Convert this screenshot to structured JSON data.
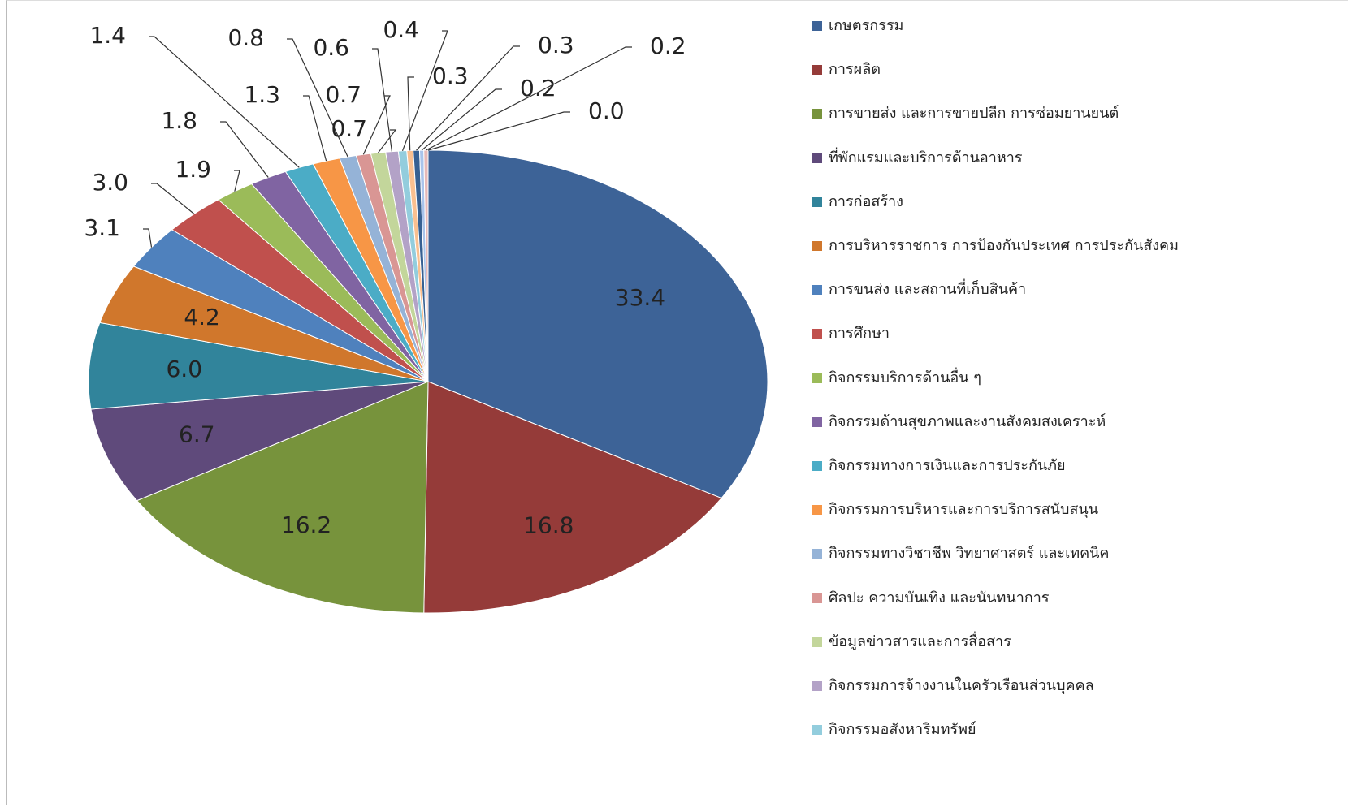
{
  "chart_data": {
    "type": "pie",
    "categories": [
      "เกษตรกรรม",
      "การผลิต",
      "การขายส่ง และการขายปลีก การซ่อมยานยนต์",
      "ที่พักแรมและบริการด้านอาหาร",
      "การก่อสร้าง",
      "การบริหารราชการ การป้องกันประเทศ การประกันสังคม",
      "การขนส่ง และสถานที่เก็บสินค้า",
      "การศึกษา",
      "กิจกรรมบริการด้านอื่น ๆ",
      "กิจกรรมด้านสุขภาพและงานสังคมสงเคราะห์",
      "กิจกรรมทางการเงินและการประกันภัย",
      "กิจกรรมการบริหารและการบริการสนับสนุน",
      "กิจกรรมทางวิชาชีพ วิทยาศาสตร์ และเทคนิค",
      "ศิลปะ ความบันเทิง และนันทนาการ",
      "ข้อมูลข่าวสารและการสื่อสาร",
      "กิจกรรมการจ้างงานในครัวเรือนส่วนบุคคล",
      "กิจกรรมอสังหาริมทรัพย์",
      null,
      null,
      null,
      null,
      null
    ],
    "values": [
      33.4,
      16.8,
      16.2,
      6.7,
      6.0,
      4.2,
      3.1,
      3.0,
      1.9,
      1.8,
      1.4,
      1.3,
      0.8,
      0.7,
      0.7,
      0.6,
      0.4,
      0.3,
      0.3,
      0.2,
      0.2,
      0.0
    ],
    "value_labels": [
      "33.4",
      "16.8",
      "16.2",
      "6.7",
      "6.0",
      "4.2",
      "3.1",
      "3.0",
      "1.9",
      "1.8",
      "1.4",
      "1.3",
      "0.8",
      "0.7",
      "0.7",
      "0.6",
      "0.4",
      "0.3",
      "0.3",
      "0.2",
      "0.2",
      "0.0"
    ],
    "colors": [
      "#3d6397",
      "#953b39",
      "#77933c",
      "#5f4a7b",
      "#31849b",
      "#d0772c",
      "#4f81bd",
      "#c0504d",
      "#9bbb59",
      "#8064a2",
      "#4bacc6",
      "#f79646",
      "#95b3d7",
      "#d99694",
      "#c3d69b",
      "#b3a2c7",
      "#93cddd",
      "#fac090",
      "#376092",
      "#a9c4eb",
      "#e6b9b8",
      "#d7e4bd"
    ]
  }
}
